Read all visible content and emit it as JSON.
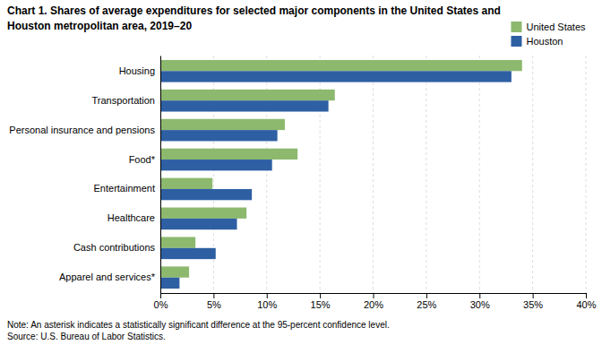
{
  "chart_data": {
    "type": "bar",
    "orientation": "horizontal",
    "title": [
      "Chart 1. Shares of average expenditures for selected major components in the United States and",
      "Houston metropolitan area, 2019–20"
    ],
    "categories": [
      "Housing",
      "Transportation",
      "Personal insurance and pensions",
      "Food*",
      "Entertainment",
      "Healthcare",
      "Cash contributions",
      "Apparel and services*"
    ],
    "series": [
      {
        "name": "United States",
        "color": "#8db96e",
        "values": [
          34.0,
          16.4,
          11.7,
          12.9,
          4.9,
          8.1,
          3.3,
          2.7
        ]
      },
      {
        "name": "Houston",
        "color": "#2e5fa3",
        "values": [
          33.0,
          15.8,
          11.0,
          10.5,
          8.6,
          7.2,
          5.2,
          1.8
        ]
      }
    ],
    "xlim": [
      0,
      40
    ],
    "xticks": [
      {
        "value": 0,
        "label": "0%"
      },
      {
        "value": 5,
        "label": "5%"
      },
      {
        "value": 10,
        "label": "10%"
      },
      {
        "value": 15,
        "label": "15%"
      },
      {
        "value": 20,
        "label": "20%"
      },
      {
        "value": 25,
        "label": "25%"
      },
      {
        "value": 30,
        "label": "30%"
      },
      {
        "value": 35,
        "label": "35%"
      },
      {
        "value": 40,
        "label": "40%"
      }
    ],
    "grid": true,
    "legend": "top-right",
    "annotations": [
      "Note: An asterisk indicates a statistically significant difference at the 95-percent confidence level.",
      "Source: U.S. Bureau of Labor Statistics."
    ]
  }
}
